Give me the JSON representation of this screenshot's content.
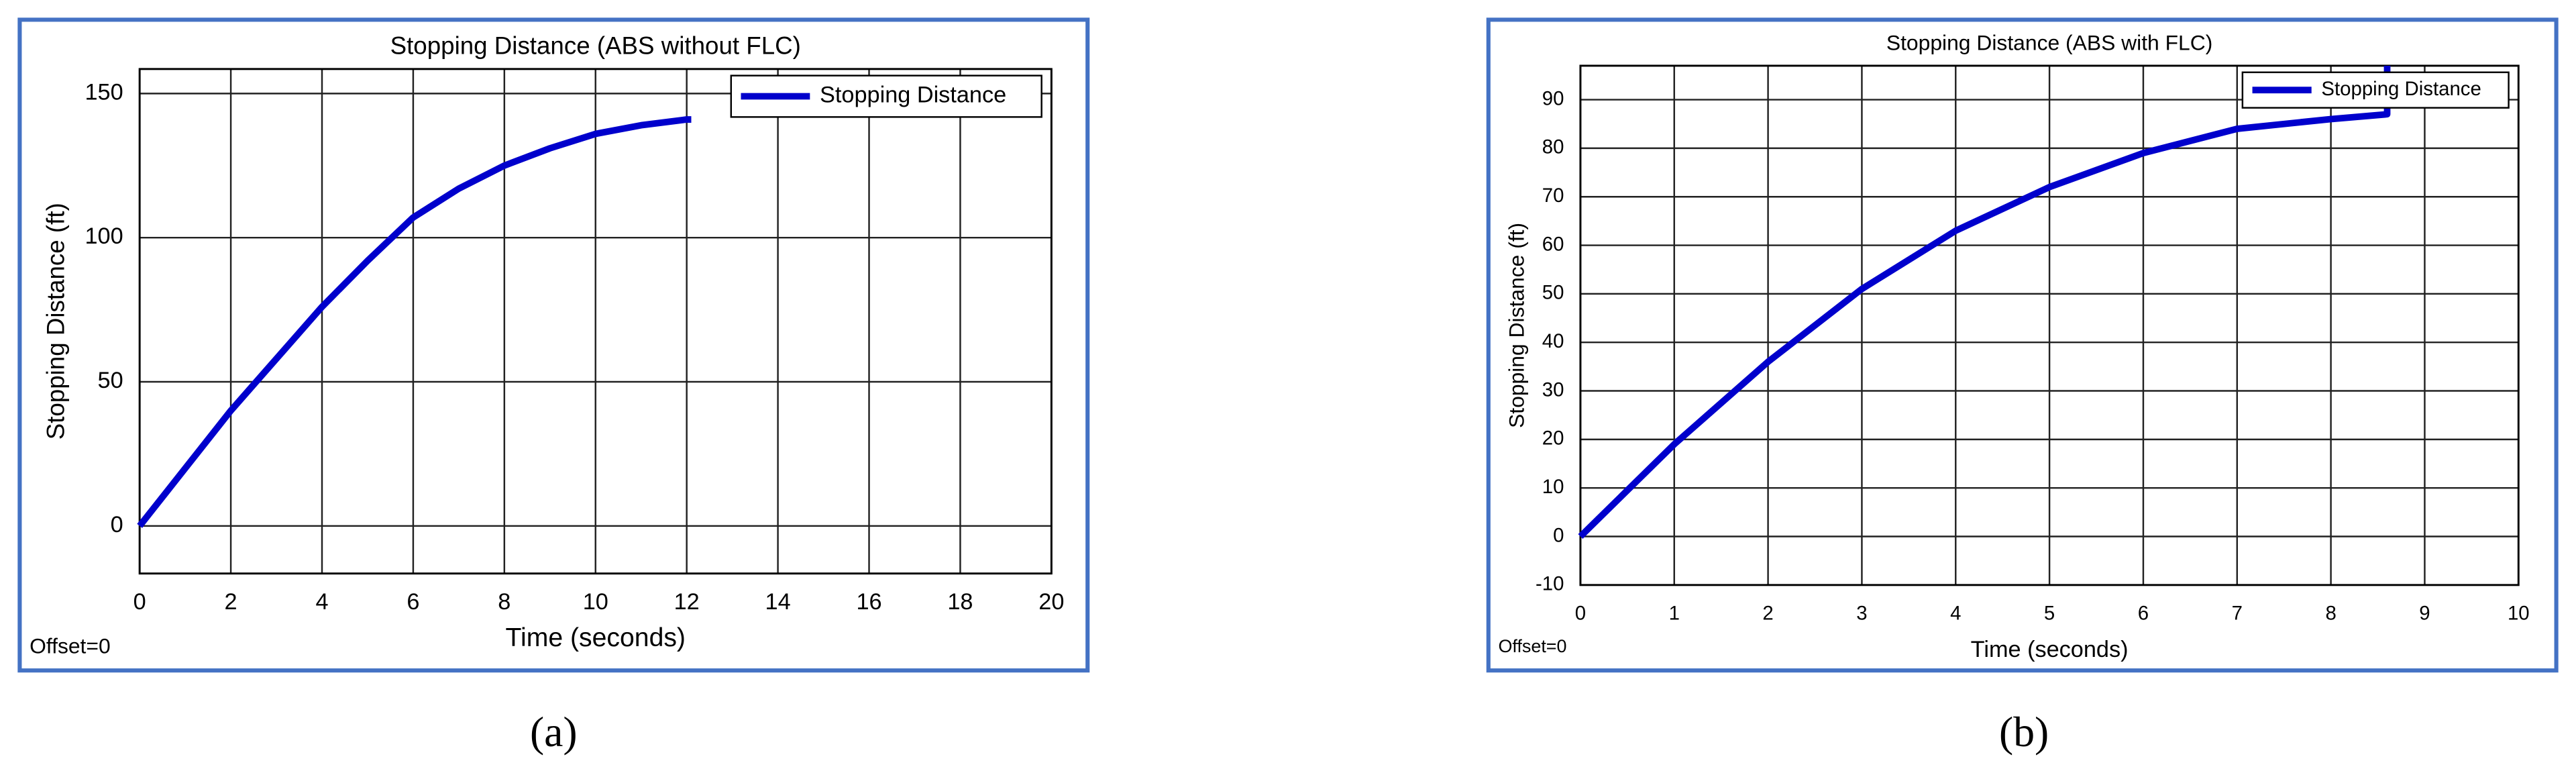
{
  "chart_data": [
    {
      "type": "line",
      "title": "Stopping Distance (ABS without FLC)",
      "x_label": "Time (seconds)",
      "y_label": "Stopping Distance (ft)",
      "annotation": "Offset=0",
      "caption": "(a)",
      "x": [
        0,
        1,
        2,
        3,
        4,
        5,
        6,
        7,
        8,
        9,
        10,
        11,
        12,
        12.1
      ],
      "series": [
        {
          "name": "Stopping Distance",
          "color": "#0000cc",
          "values": [
            0,
            20,
            40,
            58,
            76,
            92,
            107,
            117,
            125,
            131,
            136,
            139,
            141,
            141
          ]
        }
      ],
      "xlim": [
        0,
        20
      ],
      "xticks": [
        0,
        2,
        4,
        6,
        8,
        10,
        12,
        14,
        16,
        18,
        20
      ],
      "ylim": [
        -16.5,
        158.5
      ],
      "yticks": [
        0,
        50,
        100,
        150
      ],
      "grid": true,
      "legend": "top-right"
    },
    {
      "type": "line",
      "title": "Stopping Distance (ABS with FLC)",
      "x_label": "Time (seconds)",
      "y_label": "Stopping Distance (ft)",
      "annotation": "Offset=0",
      "caption": "(b)",
      "x": [
        0,
        1,
        2,
        3,
        4,
        5,
        6,
        7,
        8,
        8.6,
        8.6
      ],
      "series": [
        {
          "name": "Stopping Distance",
          "color": "#0000cc",
          "values": [
            0,
            19,
            36,
            51,
            63,
            72,
            79,
            84,
            86,
            87,
            97
          ]
        }
      ],
      "xlim": [
        0,
        10
      ],
      "xticks": [
        0,
        1,
        2,
        3,
        4,
        5,
        6,
        7,
        8,
        9,
        10
      ],
      "ylim": [
        -10,
        97
      ],
      "yticks": [
        -10,
        0,
        10,
        20,
        30,
        40,
        50,
        60,
        70,
        80,
        90
      ],
      "grid": true,
      "legend": "top-right"
    }
  ]
}
